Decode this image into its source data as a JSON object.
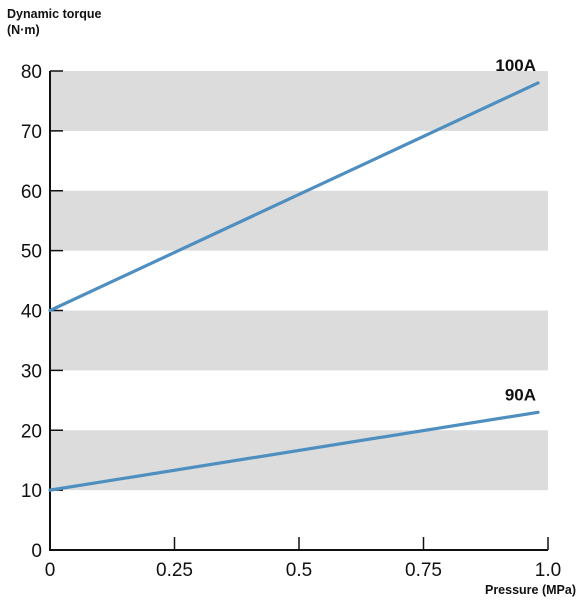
{
  "chart_data": {
    "type": "line",
    "ylabel_line1": "Dynamic torque",
    "ylabel_line2": "(N·m)",
    "xlabel": "Pressure (MPa)",
    "xlim": [
      0,
      1.0
    ],
    "ylim": [
      0,
      80
    ],
    "x_ticks": [
      "0",
      "0.25",
      "0.5",
      "0.75",
      "1.0"
    ],
    "y_ticks": [
      "0",
      "10",
      "20",
      "30",
      "40",
      "50",
      "60",
      "70",
      "80"
    ],
    "bands": [
      [
        10,
        20
      ],
      [
        30,
        40
      ],
      [
        50,
        60
      ],
      [
        70,
        80
      ]
    ],
    "band_color": "#dcdcdd",
    "line_color": "#4f8fc0",
    "series": [
      {
        "name": "100A",
        "x": [
          0,
          0.98
        ],
        "y": [
          40,
          78
        ]
      },
      {
        "name": "90A",
        "x": [
          0,
          0.98
        ],
        "y": [
          10,
          23
        ]
      }
    ]
  }
}
